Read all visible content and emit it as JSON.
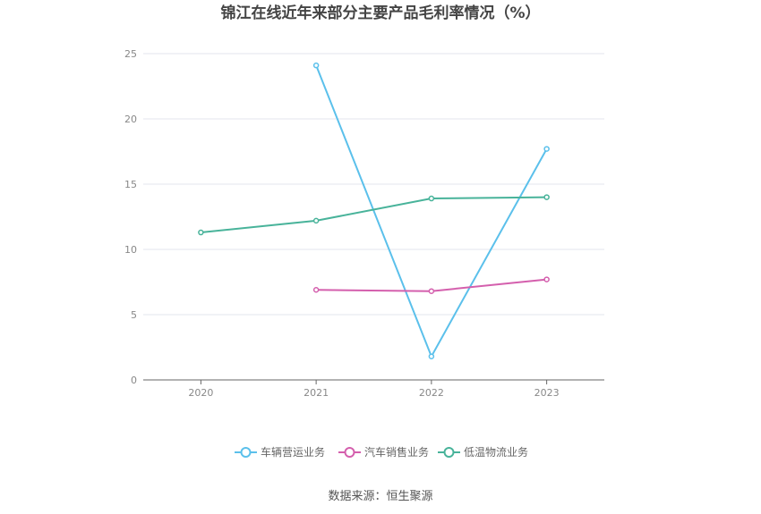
{
  "chart_data": {
    "type": "line",
    "title": "锦江在线近年来部分主要产品毛利率情况（%）",
    "categories": [
      "2020",
      "2021",
      "2022",
      "2023"
    ],
    "ylim": [
      0,
      25
    ],
    "yticks": [
      0,
      5,
      10,
      15,
      20,
      25
    ],
    "grid": true,
    "legend_position": "bottom",
    "series": [
      {
        "name": "车辆营运业务",
        "color": "#5bc0eb",
        "values": [
          null,
          24.1,
          1.8,
          17.7
        ]
      },
      {
        "name": "汽车销售业务",
        "color": "#d45fad",
        "values": [
          null,
          6.9,
          6.8,
          7.7
        ]
      },
      {
        "name": "低温物流业务",
        "color": "#48b39a",
        "values": [
          11.3,
          12.2,
          13.9,
          14.0
        ]
      }
    ]
  },
  "source": "数据来源：恒生聚源"
}
